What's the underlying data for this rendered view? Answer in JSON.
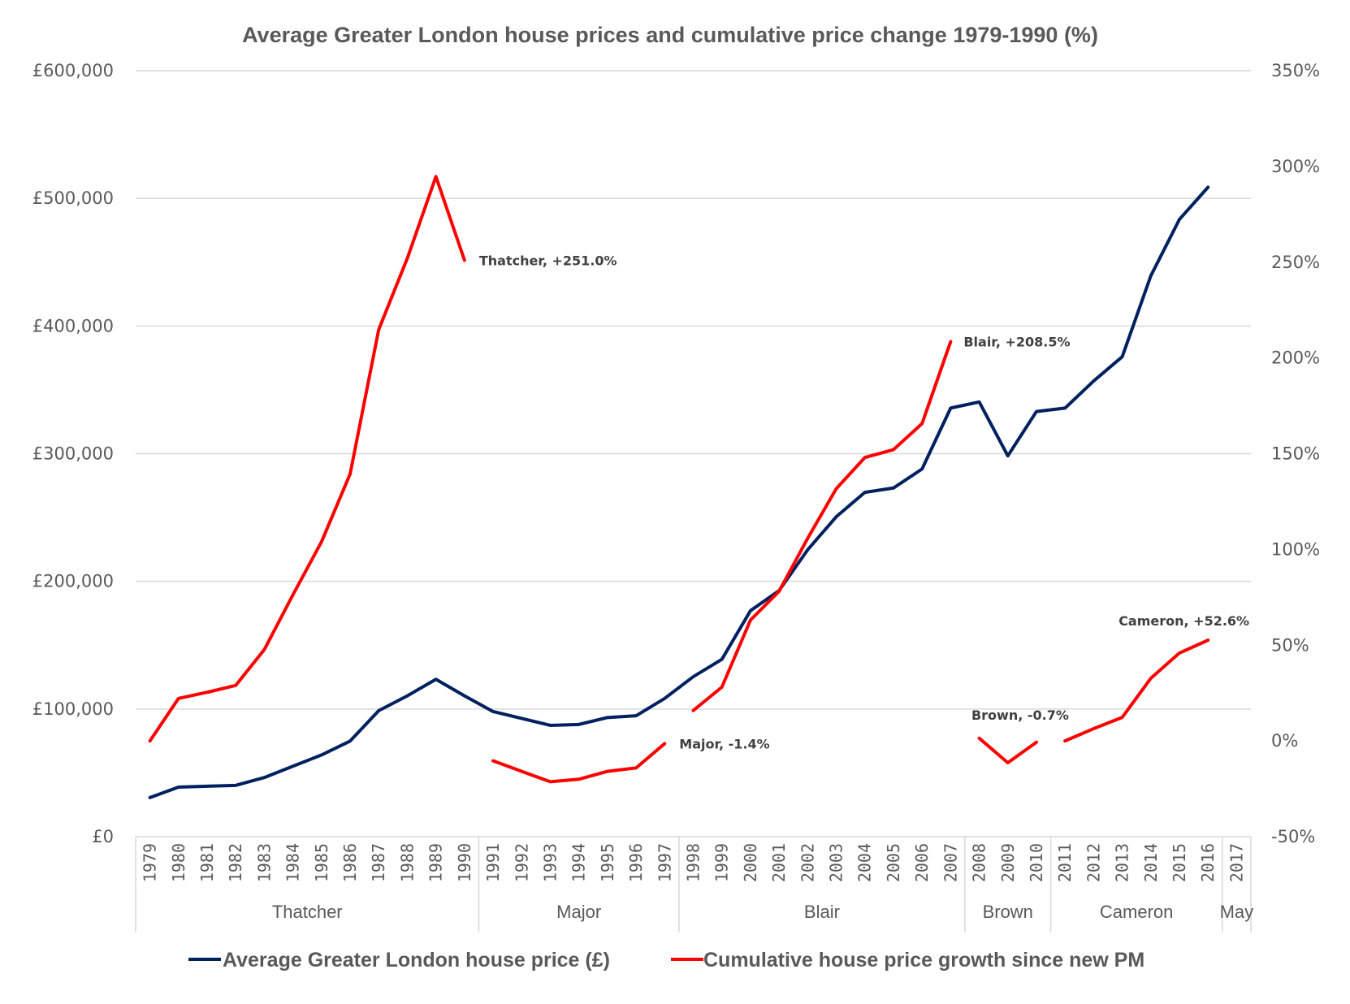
{
  "chart_data": {
    "type": "line",
    "title": "Average Greater London house prices and cumulative price change 1979-1990 (%)",
    "x": [
      "1979",
      "1980",
      "1981",
      "1982",
      "1983",
      "1984",
      "1985",
      "1986",
      "1987",
      "1988",
      "1989",
      "1990",
      "1991",
      "1992",
      "1993",
      "1994",
      "1995",
      "1996",
      "1997",
      "1998",
      "1999",
      "2000",
      "2001",
      "2002",
      "2003",
      "2004",
      "2005",
      "2006",
      "2007",
      "2008",
      "2009",
      "2010",
      "2011",
      "2012",
      "2013",
      "2014",
      "2015",
      "2016",
      "2017"
    ],
    "groups": [
      {
        "label": "Thatcher",
        "from": "1979",
        "to": "1990"
      },
      {
        "label": "Major",
        "from": "1991",
        "to": "1997"
      },
      {
        "label": "Blair",
        "from": "1998",
        "to": "2007"
      },
      {
        "label": "Brown",
        "from": "2008",
        "to": "2010"
      },
      {
        "label": "Cameron",
        "from": "2011",
        "to": "2016"
      },
      {
        "label": "May",
        "from": "2017",
        "to": "2017"
      }
    ],
    "y_left": {
      "label": "",
      "range": [
        0,
        600000
      ],
      "ticks": [
        0,
        100000,
        200000,
        300000,
        400000,
        500000,
        600000
      ],
      "tick_labels": [
        "£0",
        "£100,000",
        "£200,000",
        "£300,000",
        "£400,000",
        "£500,000",
        "£600,000"
      ]
    },
    "y_right": {
      "label": "",
      "range": [
        -50,
        350
      ],
      "ticks": [
        -50,
        0,
        50,
        100,
        150,
        200,
        250,
        300,
        350
      ],
      "tick_labels": [
        "-50%",
        "0%",
        "50%",
        "100%",
        "150%",
        "200%",
        "250%",
        "300%",
        "350%"
      ]
    },
    "grid": true,
    "legend_position": "bottom",
    "series": [
      {
        "name": "Average Greater London house price (£)",
        "axis": "left",
        "color": "#002060",
        "segments": [
          {
            "x": [
              "1979",
              "1980",
              "1981",
              "1982",
              "1983",
              "1984",
              "1985",
              "1986",
              "1987",
              "1988",
              "1989",
              "1990",
              "1991",
              "1992",
              "1993",
              "1994",
              "1995",
              "1996",
              "1997",
              "1998",
              "1999",
              "2000",
              "2001",
              "2002",
              "2003",
              "2004",
              "2005",
              "2006",
              "2007",
              "2008",
              "2009",
              "2010",
              "2011",
              "2012",
              "2013",
              "2014",
              "2015",
              "2016"
            ],
            "values": [
              30600,
              38800,
              39500,
              40200,
              46300,
              55200,
              64000,
              74900,
              98700,
              110300,
              123300,
              110300,
              98000,
              92600,
              87200,
              87900,
              93300,
              94700,
              108300,
              125300,
              138900,
              177000,
              192700,
              224700,
              250600,
              269700,
              273100,
              288000,
              335700,
              340500,
              298300,
              333000,
              335700,
              356900,
              375900,
              439300,
              483500,
              508700
            ]
          }
        ]
      },
      {
        "name": "Cumulative house price growth since new PM",
        "axis": "right",
        "color": "#ff0000",
        "segments": [
          {
            "pm": "Thatcher",
            "x": [
              "1979",
              "1980",
              "1981",
              "1982",
              "1983",
              "1984",
              "1985",
              "1986",
              "1987",
              "1988",
              "1989",
              "1990"
            ],
            "values": [
              0,
              22.2,
              25.4,
              29.0,
              47.7,
              76.3,
              104.0,
              139.4,
              214.8,
              252.0,
              294.7,
              251.0
            ]
          },
          {
            "pm": "Major",
            "x": [
              "1991",
              "1992",
              "1993",
              "1994",
              "1995",
              "1996",
              "1997"
            ],
            "values": [
              -10.4,
              -15.9,
              -21.3,
              -20.0,
              -15.9,
              -14.1,
              -1.4
            ]
          },
          {
            "pm": "Blair",
            "x": [
              "1998",
              "1999",
              "2000",
              "2001",
              "2002",
              "2003",
              "2004",
              "2005",
              "2006",
              "2007"
            ],
            "values": [
              15.9,
              28.1,
              63.1,
              78.1,
              105.8,
              131.7,
              148.0,
              152.1,
              165.7,
              208.5
            ]
          },
          {
            "pm": "Brown",
            "x": [
              "2008",
              "2009",
              "2010"
            ],
            "values": [
              1.4,
              -11.4,
              -0.7
            ]
          },
          {
            "pm": "Cameron",
            "x": [
              "2011",
              "2012",
              "2013",
              "2014",
              "2015",
              "2016"
            ],
            "values": [
              0,
              6.4,
              12.3,
              32.7,
              45.9,
              52.6
            ]
          }
        ]
      }
    ],
    "annotations": [
      {
        "text": "Thatcher, +251.0%",
        "x": "1990",
        "value": 251.0
      },
      {
        "text": "Major, -1.4%",
        "x": "1997",
        "value": -1.4
      },
      {
        "text": "Blair, +208.5%",
        "x": "2007",
        "value": 208.5
      },
      {
        "text": "Brown, -0.7%",
        "x": "2010",
        "value": -0.7
      },
      {
        "text": "Cameron, +52.6%",
        "x": "2016",
        "value": 52.6
      }
    ]
  }
}
